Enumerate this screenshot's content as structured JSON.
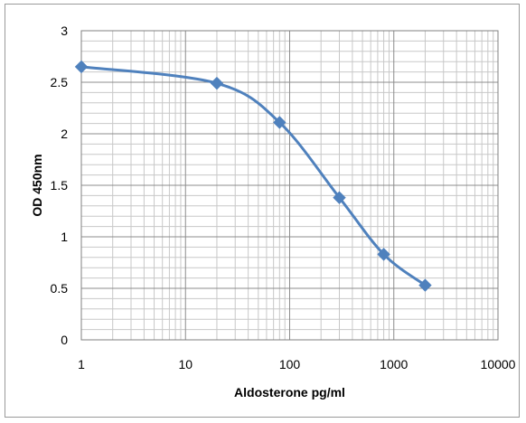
{
  "chart_data": {
    "type": "scatter",
    "title": "",
    "xlabel": "Aldosterone pg/ml",
    "ylabel": "OD  450nm",
    "x_scale": "log",
    "xlim": [
      1,
      10000
    ],
    "ylim": [
      0,
      3
    ],
    "x_ticks": [
      "1",
      "10",
      "100",
      "1000",
      "10000"
    ],
    "y_ticks": [
      "0",
      "0.5",
      "1",
      "1.5",
      "2",
      "2.5",
      "3"
    ],
    "grid": true,
    "legend": "none",
    "line_style": "smooth",
    "marker": "diamond",
    "series": [
      {
        "color": "#4f81bd",
        "x": [
          1,
          20,
          80,
          300,
          800,
          2000
        ],
        "y": [
          2.65,
          2.49,
          2.11,
          1.38,
          0.83,
          0.53
        ]
      }
    ]
  }
}
